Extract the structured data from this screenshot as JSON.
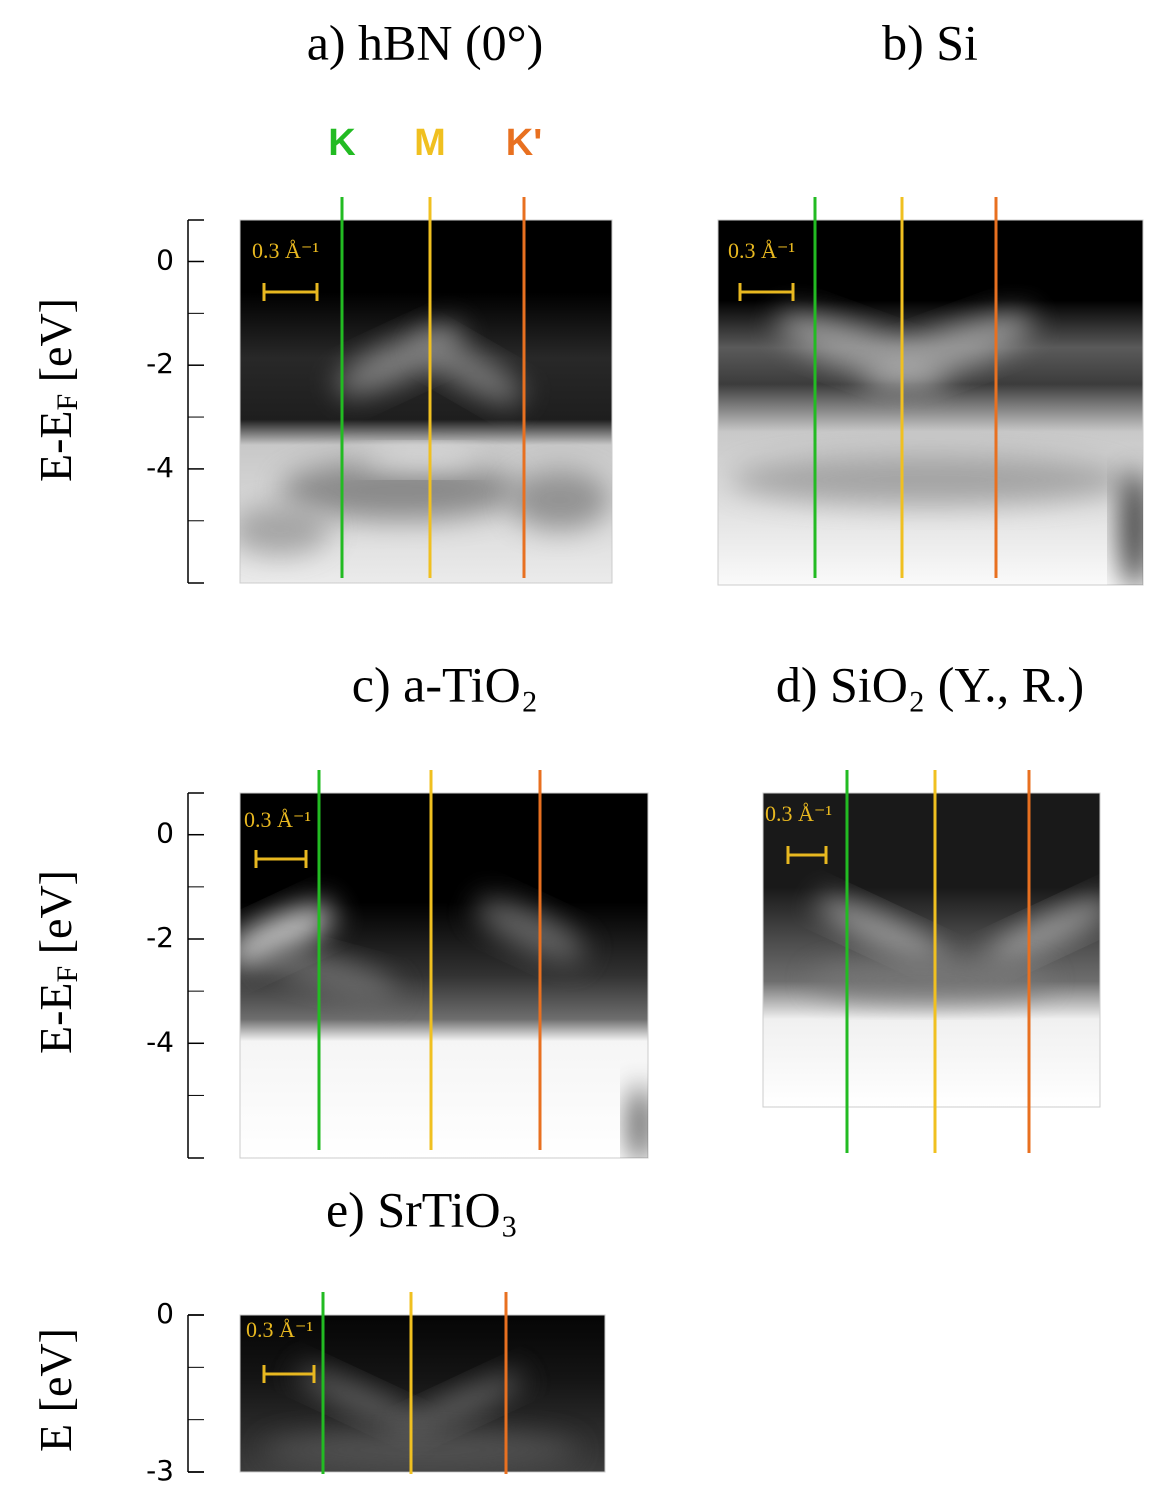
{
  "chart_data": [
    {
      "type": "heatmap",
      "title": "a) hBN (0°)",
      "ylabel": {
        "main": "E-E",
        "sub": "F",
        "unit": " [eV]"
      },
      "ylim": [
        -6.2,
        0.8
      ],
      "yticks": [
        0,
        -2,
        -4
      ],
      "minor_yticks": [
        -1,
        -3,
        -5
      ],
      "scale_label": "0.3 Å⁻¹",
      "marker_labels": [
        "K",
        "M",
        "K'"
      ],
      "marker_colors": [
        "#22bb22",
        "#f0c020",
        "#e87020"
      ]
    },
    {
      "type": "heatmap",
      "title": "b) Si",
      "scale_label": "0.3 Å⁻¹",
      "marker_colors": [
        "#22bb22",
        "#f0c020",
        "#e87020"
      ]
    },
    {
      "type": "heatmap",
      "title": "c) a-TiO₂",
      "ylabel": {
        "main": "E-E",
        "sub": "F",
        "unit": " [eV]"
      },
      "ylim": [
        -6.2,
        0.8
      ],
      "yticks": [
        0,
        -2,
        -4
      ],
      "minor_yticks": [
        -1,
        -3,
        -5
      ],
      "scale_label": "0.3 Å⁻¹",
      "marker_colors": [
        "#22bb22",
        "#f0c020",
        "#e87020"
      ]
    },
    {
      "type": "heatmap",
      "title": "d) SiO₂ (Y., R.)",
      "scale_label": "0.3 Å⁻¹",
      "marker_colors": [
        "#22bb22",
        "#f0c020",
        "#e87020"
      ]
    },
    {
      "type": "heatmap",
      "title": "e) SrTiO₃",
      "ylabel": {
        "main": "E",
        "unit": " [eV]"
      },
      "ylim": [
        -3,
        0
      ],
      "yticks": [
        0,
        -3
      ],
      "minor_yticks": [
        -1,
        -2
      ],
      "scale_label": "0.3 Å⁻¹",
      "marker_colors": [
        "#22bb22",
        "#f0c020",
        "#e87020"
      ]
    }
  ]
}
